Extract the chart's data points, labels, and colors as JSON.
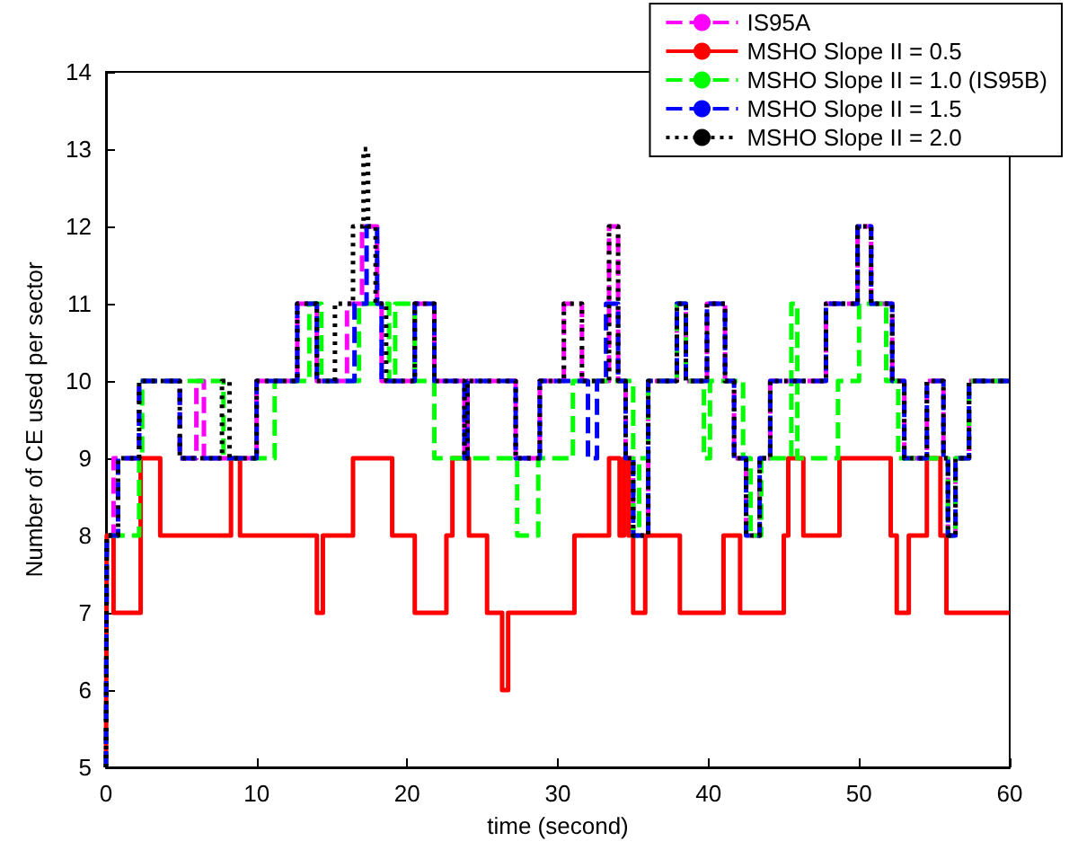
{
  "chart_data": {
    "type": "step",
    "xlabel": "time (second)",
    "ylabel": "Number of CE used per sector",
    "xlim": [
      0,
      60
    ],
    "xticks": [
      0,
      10,
      20,
      30,
      40,
      50,
      60
    ],
    "ylim": [
      5,
      14
    ],
    "yticks": [
      5,
      6,
      7,
      8,
      9,
      10,
      11,
      12,
      13,
      14
    ],
    "grid": false,
    "legend": "top right",
    "marker": "none",
    "series": [
      {
        "name": "IS95A",
        "color": "#ff00ff",
        "line_style": "dashed",
        "x": [
          0,
          0.05,
          0.5,
          2.2,
          4.9,
          6.0,
          6.5,
          7.8,
          10.0,
          12.7,
          14.0,
          16.0,
          17.0,
          18.0,
          18.3,
          20.5,
          21.8,
          23.8,
          24.0,
          27.2,
          28.8,
          30.4,
          31.6,
          33.4,
          34.0,
          34.5,
          35.0,
          36.0,
          37.9,
          38.5,
          39.9,
          41.1,
          41.7,
          42.5,
          43.4,
          44.1,
          47.8,
          49.9,
          50.8,
          52.2,
          53.0,
          54.5,
          55.6,
          55.9,
          56.4,
          57.3,
          60
        ],
        "values": [
          5,
          8,
          9,
          10,
          9,
          10,
          9,
          9,
          10,
          11,
          10,
          11,
          12,
          11,
          10,
          11,
          10,
          9,
          10,
          9,
          10,
          11,
          10,
          12,
          10,
          9,
          8,
          10,
          11,
          10,
          11,
          10,
          9,
          8,
          9,
          10,
          11,
          12,
          11,
          10,
          9,
          10,
          9,
          8,
          9,
          10,
          10
        ]
      },
      {
        "name": "MSHO Slope II = 0.5",
        "color": "#ff0000",
        "line_style": "solid",
        "x": [
          0,
          0.05,
          0.5,
          2.3,
          3.6,
          8.3,
          8.9,
          14.0,
          14.4,
          16.4,
          19.0,
          20.5,
          22.6,
          23.0,
          24.1,
          25.3,
          26.3,
          26.7,
          31.1,
          33.4,
          34.1,
          34.4,
          34.7,
          35.0,
          35.8,
          38.1,
          41.0,
          42.1,
          45.0,
          45.3,
          46.3,
          48.7,
          52.1,
          52.5,
          53.3,
          54.5,
          55.4,
          55.8,
          60
        ],
        "values": [
          5,
          8,
          7,
          9,
          8,
          9,
          8,
          7,
          8,
          9,
          8,
          7,
          8,
          9,
          8,
          7,
          6,
          7,
          8,
          9,
          8,
          9,
          8,
          7,
          8,
          7,
          8,
          7,
          8,
          9,
          8,
          9,
          8,
          7,
          8,
          9,
          8,
          7,
          7
        ]
      },
      {
        "name": "MSHO Slope II = 1.0 (IS95B)",
        "color": "#00ff00",
        "line_style": "dashed",
        "x": [
          0,
          0.05,
          2.2,
          2.4,
          7.8,
          11.2,
          13.5,
          14.3,
          16.8,
          18.8,
          19.2,
          20.5,
          21.8,
          25.2,
          27.3,
          28.7,
          31.0,
          35.0,
          35.4,
          36.0,
          37.9,
          38.5,
          39.7,
          40.1,
          42.3,
          42.8,
          43.5,
          45.5,
          45.9,
          48.6,
          48.8,
          50.0,
          51.8,
          52.6,
          55.9,
          56.4,
          57.3,
          60
        ],
        "values": [
          5,
          8,
          9,
          10,
          9,
          10,
          11,
          10,
          11,
          10,
          11,
          10,
          9,
          9,
          8,
          9,
          10,
          8,
          9,
          10,
          11,
          10,
          9,
          10,
          9,
          8,
          9,
          11,
          9,
          10,
          10,
          11,
          10,
          9,
          8,
          9,
          10,
          10
        ]
      },
      {
        "name": "MSHO Slope II = 1.5",
        "color": "#0000ff",
        "line_style": "dashed",
        "x": [
          0,
          0.05,
          0.8,
          2.2,
          4.9,
          10.0,
          12.7,
          14.0,
          16.5,
          17.3,
          18.0,
          18.3,
          20.5,
          21.8,
          23.8,
          24.0,
          27.2,
          28.8,
          32.0,
          32.6,
          33.2,
          34.0,
          34.5,
          35.0,
          36.0,
          37.9,
          38.5,
          39.9,
          41.1,
          41.7,
          42.5,
          43.4,
          44.1,
          47.8,
          49.9,
          50.8,
          52.2,
          53.0,
          54.5,
          55.6,
          55.9,
          56.4,
          57.3,
          60
        ],
        "values": [
          5,
          8,
          9,
          10,
          9,
          10,
          11,
          10,
          11,
          12,
          11,
          10,
          11,
          10,
          9,
          10,
          9,
          10,
          9,
          10,
          11,
          10,
          9,
          8,
          10,
          11,
          10,
          11,
          10,
          9,
          8,
          9,
          10,
          11,
          12,
          11,
          10,
          9,
          10,
          9,
          8,
          9,
          10,
          10
        ]
      },
      {
        "name": "MSHO Slope II = 2.0",
        "color": "#000000",
        "line_style": "dotted",
        "x": [
          0,
          0.05,
          0.8,
          2.2,
          4.9,
          7.7,
          8.2,
          10.0,
          12.7,
          14.0,
          15.2,
          16.4,
          17.1,
          17.4,
          17.9,
          18.6,
          20.5,
          21.8,
          23.8,
          24.0,
          27.2,
          28.8,
          30.4,
          31.6,
          33.4,
          34.0,
          34.5,
          35.0,
          36.0,
          37.9,
          38.5,
          39.9,
          41.1,
          41.7,
          42.5,
          43.4,
          44.1,
          47.8,
          49.9,
          50.8,
          52.2,
          53.0,
          54.5,
          55.6,
          55.9,
          56.4,
          57.3,
          60
        ],
        "values": [
          5,
          8,
          9,
          10,
          9,
          10,
          9,
          10,
          11,
          10,
          11,
          12,
          13,
          12,
          11,
          10,
          11,
          10,
          9,
          10,
          9,
          10,
          11,
          10,
          12,
          10,
          9,
          8,
          10,
          11,
          10,
          11,
          10,
          9,
          8,
          9,
          10,
          11,
          12,
          11,
          10,
          9,
          10,
          9,
          8,
          9,
          10,
          10
        ]
      }
    ]
  }
}
